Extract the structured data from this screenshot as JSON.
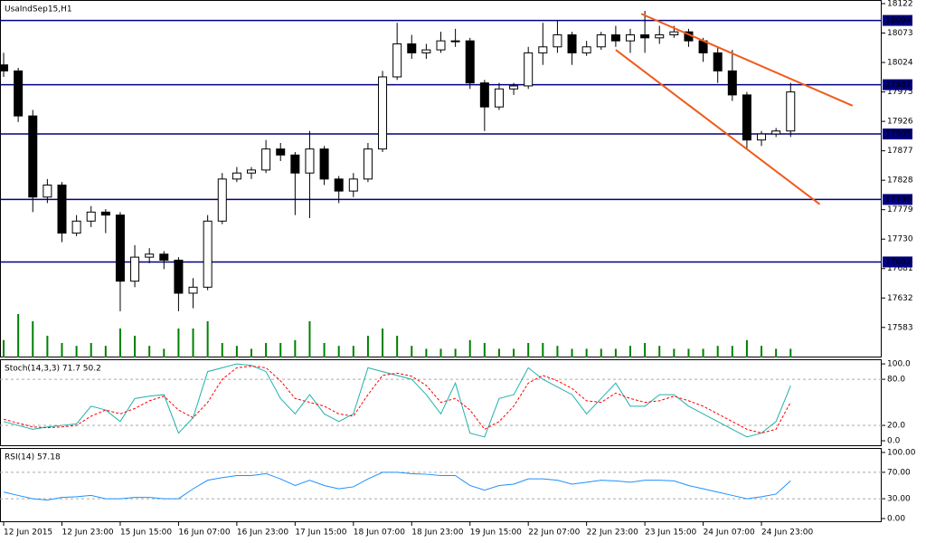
{
  "chart_data": [
    {
      "type": "candlestick",
      "title": "UsaIndSep15,H1",
      "x": [
        0,
        4,
        8,
        12,
        16,
        20,
        24,
        28,
        32,
        36,
        40,
        44,
        48,
        52,
        56,
        60,
        64,
        68,
        72,
        76,
        80,
        84,
        88,
        92,
        96,
        100,
        104,
        108,
        112,
        116,
        120,
        124,
        128,
        132,
        136,
        140,
        144,
        148,
        152,
        156,
        160,
        164,
        168,
        172,
        176,
        180,
        184,
        188,
        192,
        196,
        200,
        204,
        208,
        212,
        216
      ],
      "ohlc": [
        [
          18020,
          18040,
          18000,
          18010
        ],
        [
          18010,
          18015,
          17925,
          17935
        ],
        [
          17935,
          17945,
          17775,
          17800
        ],
        [
          17800,
          17830,
          17790,
          17820
        ],
        [
          17820,
          17825,
          17725,
          17740
        ],
        [
          17740,
          17770,
          17735,
          17760
        ],
        [
          17760,
          17785,
          17750,
          17775
        ],
        [
          17775,
          17780,
          17740,
          17770
        ],
        [
          17770,
          17775,
          17610,
          17660
        ],
        [
          17660,
          17720,
          17650,
          17700
        ],
        [
          17700,
          17715,
          17690,
          17705
        ],
        [
          17705,
          17710,
          17680,
          17695
        ],
        [
          17695,
          17700,
          17610,
          17640
        ],
        [
          17640,
          17665,
          17615,
          17650
        ],
        [
          17650,
          17770,
          17645,
          17760
        ],
        [
          17760,
          17840,
          17755,
          17830
        ],
        [
          17830,
          17850,
          17825,
          17840
        ],
        [
          17840,
          17850,
          17830,
          17845
        ],
        [
          17845,
          17895,
          17840,
          17880
        ],
        [
          17880,
          17890,
          17860,
          17870
        ],
        [
          17870,
          17875,
          17770,
          17840
        ],
        [
          17840,
          17910,
          17765,
          17880
        ],
        [
          17880,
          17885,
          17820,
          17830
        ],
        [
          17830,
          17835,
          17790,
          17810
        ],
        [
          17810,
          17840,
          17800,
          17830
        ],
        [
          17830,
          17890,
          17825,
          17880
        ],
        [
          17880,
          18010,
          17875,
          18000
        ],
        [
          18000,
          18090,
          17995,
          18055
        ],
        [
          18055,
          18070,
          18030,
          18040
        ],
        [
          18040,
          18055,
          18030,
          18045
        ],
        [
          18045,
          18075,
          18040,
          18060
        ],
        [
          18060,
          18080,
          18050,
          18060
        ],
        [
          18060,
          18065,
          17980,
          17990
        ],
        [
          17990,
          17995,
          17910,
          17950
        ],
        [
          17950,
          17990,
          17945,
          17980
        ],
        [
          17980,
          17990,
          17970,
          17985
        ],
        [
          17985,
          18050,
          17980,
          18040
        ],
        [
          18040,
          18090,
          18020,
          18050
        ],
        [
          18050,
          18095,
          18040,
          18070
        ],
        [
          18070,
          18075,
          18020,
          18040
        ],
        [
          18040,
          18060,
          18035,
          18050
        ],
        [
          18050,
          18075,
          18045,
          18070
        ],
        [
          18070,
          18085,
          18050,
          18060
        ],
        [
          18060,
          18080,
          18040,
          18070
        ],
        [
          18070,
          18110,
          18040,
          18065
        ],
        [
          18065,
          18085,
          18055,
          18070
        ],
        [
          18070,
          18085,
          18065,
          18075
        ],
        [
          18075,
          18080,
          18050,
          18060
        ],
        [
          18060,
          18065,
          18025,
          18040
        ],
        [
          18040,
          18050,
          17990,
          18010
        ],
        [
          18010,
          18045,
          17960,
          17970
        ],
        [
          17970,
          17975,
          17880,
          17895
        ],
        [
          17895,
          17910,
          17885,
          17905
        ],
        [
          17905,
          17915,
          17900,
          17910
        ],
        [
          17910,
          17990,
          17900,
          17975
        ]
      ],
      "volume": [
        12,
        30,
        25,
        15,
        10,
        8,
        10,
        8,
        20,
        15,
        8,
        6,
        20,
        20,
        25,
        10,
        8,
        6,
        10,
        10,
        12,
        25,
        10,
        8,
        8,
        15,
        20,
        15,
        8,
        6,
        6,
        6,
        12,
        10,
        6,
        6,
        10,
        10,
        8,
        6,
        6,
        6,
        6,
        8,
        10,
        8,
        6,
        6,
        6,
        8,
        8,
        12,
        8,
        6,
        6
      ],
      "volume_color": "#008000",
      "xlim": [
        -1,
        241
      ],
      "ylim": [
        17533,
        18128
      ],
      "yticks": [
        18122,
        18073,
        18024,
        17975,
        17926,
        17877,
        17828,
        17779,
        17730,
        17681,
        17632,
        17583
      ],
      "xticks": [
        {
          "value": 0,
          "label": "12 Jun 2015"
        },
        {
          "value": 16,
          "label": "12 Jun 23:00"
        },
        {
          "value": 32,
          "label": "15 Jun 15:00"
        },
        {
          "value": 48,
          "label": "16 Jun 07:00"
        },
        {
          "value": 64,
          "label": "16 Jun 23:00"
        },
        {
          "value": 80,
          "label": "17 Jun 15:00"
        },
        {
          "value": 96,
          "label": "18 Jun 07:00"
        },
        {
          "value": 112,
          "label": "18 Jun 23:00"
        },
        {
          "value": 128,
          "label": "19 Jun 15:00"
        },
        {
          "value": 144,
          "label": "22 Jun 07:00"
        },
        {
          "value": 160,
          "label": "22 Jun 23:00"
        },
        {
          "value": 176,
          "label": "23 Jun 15:00"
        },
        {
          "value": 192,
          "label": "24 Jun 07:00"
        },
        {
          "value": 208,
          "label": "24 Jun 23:00"
        }
      ],
      "levels": [
        18094,
        17987,
        17905,
        17796,
        17692
      ],
      "level_color": "#000080",
      "trendlines": [
        {
          "x": [
            175,
            233
          ],
          "y": [
            18105,
            17952
          ]
        },
        {
          "x": [
            168,
            224
          ],
          "y": [
            18045,
            17788
          ]
        }
      ],
      "trend_color": "#f05a1a"
    },
    {
      "type": "line",
      "title": "Stoch(14,3,3) 71.7 50.2",
      "x": [
        0,
        4,
        8,
        12,
        16,
        20,
        24,
        28,
        32,
        36,
        40,
        44,
        48,
        52,
        56,
        60,
        64,
        68,
        72,
        76,
        80,
        84,
        88,
        92,
        96,
        100,
        104,
        108,
        112,
        116,
        120,
        124,
        128,
        132,
        136,
        140,
        144,
        148,
        152,
        156,
        160,
        164,
        168,
        172,
        176,
        180,
        184,
        188,
        192,
        196,
        200,
        204,
        208,
        212,
        216
      ],
      "series": [
        {
          "color": "#20b2aa",
          "values": [
            25,
            20,
            15,
            18,
            20,
            22,
            45,
            40,
            25,
            55,
            58,
            60,
            10,
            30,
            90,
            95,
            100,
            98,
            90,
            55,
            35,
            60,
            35,
            25,
            35,
            95,
            90,
            85,
            80,
            60,
            35,
            75,
            10,
            5,
            55,
            60,
            95,
            80,
            70,
            60,
            35,
            55,
            75,
            45,
            45,
            60,
            60,
            45,
            35,
            25,
            15,
            5,
            10,
            25,
            71.7
          ]
        },
        {
          "color": "#ff0000",
          "dashed": true,
          "values": [
            28,
            23,
            18,
            17,
            18,
            20,
            32,
            40,
            35,
            42,
            52,
            58,
            40,
            30,
            50,
            80,
            95,
            97,
            95,
            78,
            55,
            50,
            45,
            35,
            32,
            60,
            85,
            88,
            84,
            72,
            50,
            55,
            40,
            15,
            25,
            45,
            75,
            85,
            78,
            68,
            52,
            50,
            62,
            55,
            50,
            52,
            58,
            52,
            45,
            35,
            25,
            15,
            10,
            15,
            50.2
          ]
        }
      ],
      "xlim": [
        -1,
        241
      ],
      "ylim": [
        -7,
        106
      ],
      "yticks": [
        {
          "value": 100,
          "label": "100.0"
        },
        {
          "value": 80,
          "label": "80.0"
        },
        {
          "value": 20,
          "label": "20.0"
        },
        {
          "value": 0,
          "label": "0.0"
        }
      ],
      "levels": [
        80,
        20
      ]
    },
    {
      "type": "line",
      "title": "RSI(14) 57.18",
      "x": [
        0,
        4,
        8,
        12,
        16,
        20,
        24,
        28,
        32,
        36,
        40,
        44,
        48,
        52,
        56,
        60,
        64,
        68,
        72,
        76,
        80,
        84,
        88,
        92,
        96,
        100,
        104,
        108,
        112,
        116,
        120,
        124,
        128,
        132,
        136,
        140,
        144,
        148,
        152,
        156,
        160,
        164,
        168,
        172,
        176,
        180,
        184,
        188,
        192,
        196,
        200,
        204,
        208,
        212,
        216
      ],
      "series": [
        {
          "color": "#1e90ff",
          "values": [
            40,
            35,
            30,
            28,
            32,
            33,
            35,
            30,
            30,
            32,
            32,
            30,
            30,
            45,
            58,
            62,
            65,
            65,
            68,
            60,
            50,
            58,
            50,
            45,
            48,
            60,
            70,
            70,
            68,
            67,
            65,
            65,
            50,
            43,
            50,
            52,
            60,
            60,
            58,
            52,
            55,
            58,
            57,
            55,
            58,
            58,
            57,
            50,
            45,
            40,
            35,
            30,
            33,
            37,
            57.18
          ]
        }
      ],
      "xlim": [
        -1,
        241
      ],
      "ylim": [
        -5.5,
        106.8
      ],
      "yticks": [
        {
          "value": 100,
          "label": "100.00"
        },
        {
          "value": 70,
          "label": "70.00"
        },
        {
          "value": 30,
          "label": "30.00"
        },
        {
          "value": 0,
          "label": "0.00"
        }
      ],
      "levels": [
        70,
        30
      ]
    }
  ]
}
